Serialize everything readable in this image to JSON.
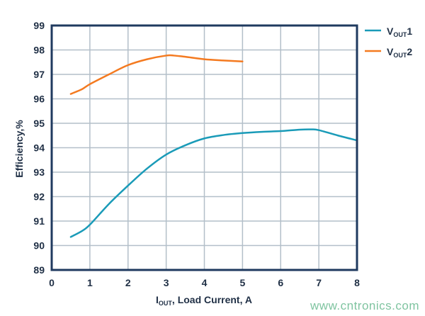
{
  "chart_data": {
    "type": "line",
    "xlabel": {
      "main": "I",
      "sub": "OUT",
      "rest": ", Load Current, A"
    },
    "ylabel": "Efficiency,%",
    "xlim": [
      0,
      8
    ],
    "ylim": [
      89,
      99
    ],
    "xticks": [
      "0",
      "1",
      "2",
      "3",
      "4",
      "5",
      "6",
      "7",
      "8"
    ],
    "yticks": [
      "89",
      "90",
      "91",
      "92",
      "93",
      "94",
      "95",
      "96",
      "97",
      "98",
      "99"
    ],
    "grid": true,
    "legend_position": "right",
    "series": [
      {
        "name": "V",
        "name_sub": "OUT",
        "name_suffix": "1",
        "color": "#1a9bb8",
        "x": [
          0.5,
          0.8,
          1,
          1.5,
          2,
          2.5,
          3,
          3.5,
          4,
          4.5,
          5,
          5.5,
          6,
          6.5,
          6.8,
          7,
          7.5,
          8
        ],
        "y": [
          90.35,
          90.6,
          90.85,
          91.7,
          92.45,
          93.15,
          93.72,
          94.1,
          94.38,
          94.52,
          94.6,
          94.65,
          94.68,
          94.74,
          94.75,
          94.72,
          94.5,
          94.3
        ]
      },
      {
        "name": "V",
        "name_sub": "OUT",
        "name_suffix": "2",
        "color": "#f47a20",
        "x": [
          0.5,
          0.8,
          1,
          1.5,
          2,
          2.5,
          3,
          3.2,
          3.5,
          4,
          4.5,
          5
        ],
        "y": [
          96.2,
          96.4,
          96.6,
          97.0,
          97.38,
          97.62,
          97.77,
          97.77,
          97.72,
          97.62,
          97.57,
          97.53
        ]
      }
    ],
    "axis_color": "#1f3a5f",
    "grid_color": "#b3bfc9"
  },
  "watermark": "www.cntronics.com"
}
